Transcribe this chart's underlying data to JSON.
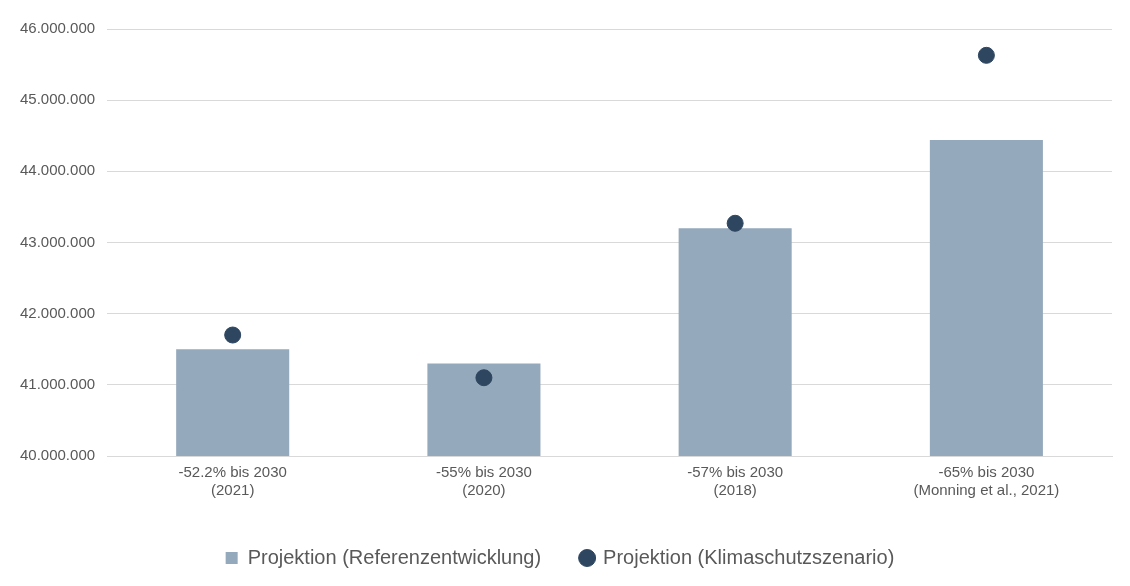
{
  "chart_data": {
    "type": "bar",
    "categories": [
      "-52.2% bis 2030\n(2021)",
      "-55% bis 2030\n(2020)",
      "-57% bis 2030\n(2018)",
      "-65% bis 2030\n(Monning et al., 2021)"
    ],
    "series": [
      {
        "name": "Projektion (Referenzentwicklung)",
        "color": "#94a9bb",
        "values": [
          41500000,
          41300000,
          43200000,
          44440000
        ]
      },
      {
        "name": "Projektion (Klimaschutzszenario)",
        "type": "scatter",
        "color": "#2e4660",
        "values": [
          41700000,
          41100000,
          43270000,
          45630000
        ],
        "marker": "circle"
      }
    ],
    "ylim": [
      40000000,
      46000000
    ],
    "yticks": [
      {
        "value": 40000000,
        "label": "40.000.000"
      },
      {
        "value": 41000000,
        "label": "41.000.000"
      },
      {
        "value": 42000000,
        "label": "42.000.000"
      },
      {
        "value": 43000000,
        "label": "43.000.000"
      },
      {
        "value": 44000000,
        "label": "44.000.000"
      },
      {
        "value": 45000000,
        "label": "45.000.000"
      },
      {
        "value": 46000000,
        "label": "46.000.000"
      }
    ],
    "grid": "y",
    "legend": "bottom"
  }
}
